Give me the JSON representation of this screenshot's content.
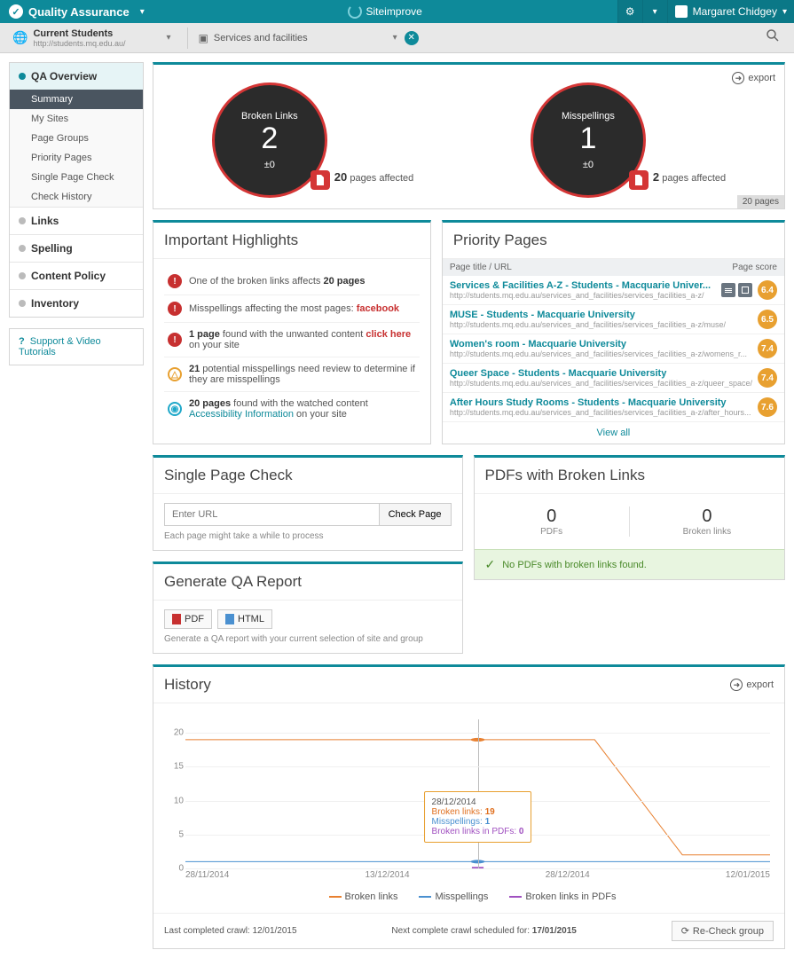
{
  "header": {
    "module": "Quality Assurance",
    "brand": "Siteimprove",
    "user_name": "Margaret Chidgey"
  },
  "subheader": {
    "site_name": "Current Students",
    "site_url": "http://students.mq.edu.au/",
    "group": "Services and facilities"
  },
  "nav": {
    "overview": {
      "label": "QA Overview",
      "items": [
        "Summary",
        "My Sites",
        "Page Groups",
        "Priority Pages",
        "Single Page Check",
        "Check History"
      ]
    },
    "other": [
      "Links",
      "Spelling",
      "Content Policy",
      "Inventory"
    ],
    "support": "Support & Video Tutorials"
  },
  "overview_tile": {
    "export": "export",
    "circles": [
      {
        "label": "Broken Links",
        "value": "2",
        "delta": "±0",
        "pages_affected": "20",
        "pages_label": "pages affected"
      },
      {
        "label": "Misspellings",
        "value": "1",
        "delta": "±0",
        "pages_affected": "2",
        "pages_label": "pages affected"
      }
    ],
    "footer_badge": "20 pages"
  },
  "highlights": {
    "title": "Important Highlights",
    "items": [
      {
        "icon": "red",
        "text_before": "One of the broken links affects ",
        "bold": "20 pages",
        "text_after": ""
      },
      {
        "icon": "red",
        "text_before": "Misspellings affecting the most pages: ",
        "link_red": "facebook"
      },
      {
        "icon": "red",
        "bold_first": "1 page",
        "text_mid": " found with the unwanted content ",
        "link_red": "click here",
        "text_after": " on your site"
      },
      {
        "icon": "orange",
        "bold_first": "21",
        "text_after": " potential misspellings need review to determine if they are misspellings"
      },
      {
        "icon": "blue",
        "bold_first": "20 pages",
        "text_mid": " found with the watched content ",
        "link_teal": "Accessibility Information",
        "text_after": " on your site"
      }
    ]
  },
  "priority": {
    "title": "Priority Pages",
    "col1": "Page title / URL",
    "col2": "Page score",
    "rows": [
      {
        "title": "Services & Facilities A-Z - Students - Macquarie Univer...",
        "url": "http://students.mq.edu.au/services_and_facilities/services_facilities_a-z/",
        "score": "6.4",
        "show_actions": true
      },
      {
        "title": "MUSE - Students - Macquarie University",
        "url": "http://students.mq.edu.au/services_and_facilities/services_facilities_a-z/muse/",
        "score": "6.5"
      },
      {
        "title": "Women's room - Macquarie University",
        "url": "http://students.mq.edu.au/services_and_facilities/services_facilities_a-z/womens_r...",
        "score": "7.4"
      },
      {
        "title": "Queer Space - Students - Macquarie University",
        "url": "http://students.mq.edu.au/services_and_facilities/services_facilities_a-z/queer_space/",
        "score": "7.4"
      },
      {
        "title": "After Hours Study Rooms - Students - Macquarie University",
        "url": "http://students.mq.edu.au/services_and_facilities/services_facilities_a-z/after_hours...",
        "score": "7.6"
      }
    ],
    "view_all": "View all"
  },
  "spc": {
    "title": "Single Page Check",
    "placeholder": "Enter URL",
    "button": "Check Page",
    "note": "Each page might take a while to process"
  },
  "pdfs": {
    "title": "PDFs with Broken Links",
    "stats": [
      {
        "value": "0",
        "label": "PDFs"
      },
      {
        "value": "0",
        "label": "Broken links"
      }
    ],
    "ok_msg": "No PDFs with broken links found."
  },
  "report": {
    "title": "Generate QA Report",
    "pdf_btn": "PDF",
    "html_btn": "HTML",
    "note": "Generate a QA report with your current selection of site and group"
  },
  "history": {
    "title": "History",
    "export": "export",
    "y_ticks": [
      0,
      5,
      10,
      15,
      20
    ],
    "y_max": 22,
    "x_labels": [
      "28/11/2014",
      "13/12/2014",
      "28/12/2014",
      "12/01/2015"
    ],
    "series": {
      "broken_links": {
        "color": "#e88030",
        "label": "Broken links",
        "points": [
          [
            0,
            19
          ],
          [
            25,
            19
          ],
          [
            50,
            19
          ],
          [
            70,
            19
          ],
          [
            85,
            2
          ],
          [
            100,
            2
          ]
        ]
      },
      "misspellings": {
        "color": "#4a90d0",
        "label": "Misspellings",
        "points": [
          [
            0,
            1
          ],
          [
            100,
            1
          ]
        ]
      },
      "broken_pdfs": {
        "color": "#a050c0",
        "label": "Broken links in PDFs",
        "points": [
          [
            50,
            0
          ]
        ]
      }
    },
    "tooltip": {
      "date": "28/12/2014",
      "broken_links_lbl": "Broken links:",
      "broken_links_val": "19",
      "misspellings_lbl": "Misspellings:",
      "misspellings_val": "1",
      "pdfs_lbl": "Broken links in PDFs:",
      "pdfs_val": "0"
    },
    "footer": {
      "last_crawl_lbl": "Last completed crawl: ",
      "last_crawl_date": "12/01/2015",
      "next_crawl_lbl": "Next complete crawl scheduled for: ",
      "next_crawl_date": "17/01/2015",
      "recheck": "Re-Check group"
    }
  }
}
